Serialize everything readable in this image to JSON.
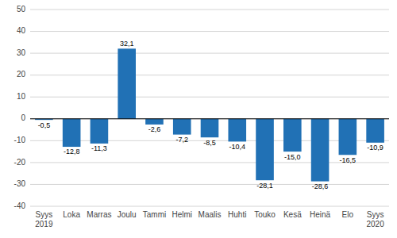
{
  "chart_data": {
    "type": "bar",
    "categories": [
      "Syys\n2019",
      "Loka",
      "Marras",
      "Joulu",
      "Tammi",
      "Helmi",
      "Maalis",
      "Huhti",
      "Touko",
      "Kesä",
      "Heinä",
      "Elo",
      "Syys\n2020"
    ],
    "values": [
      -0.5,
      -12.8,
      -11.3,
      32.1,
      -2.6,
      -7.2,
      -8.5,
      -10.4,
      -28.1,
      -15.0,
      -28.6,
      -16.5,
      -10.9
    ],
    "value_labels": [
      "-0,5",
      "-12,8",
      "-11,3",
      "32,1",
      "-2,6",
      "-7,2",
      "-8,5",
      "-10,4",
      "-28,1",
      "-15,0",
      "-28,6",
      "-16,5",
      "-10,9"
    ],
    "data_labels": true,
    "color": "#2171b5",
    "ylim": [
      -40,
      50
    ],
    "yticks": [
      -40,
      -30,
      -20,
      -10,
      0,
      10,
      20,
      30,
      40,
      50
    ],
    "grid": true
  }
}
